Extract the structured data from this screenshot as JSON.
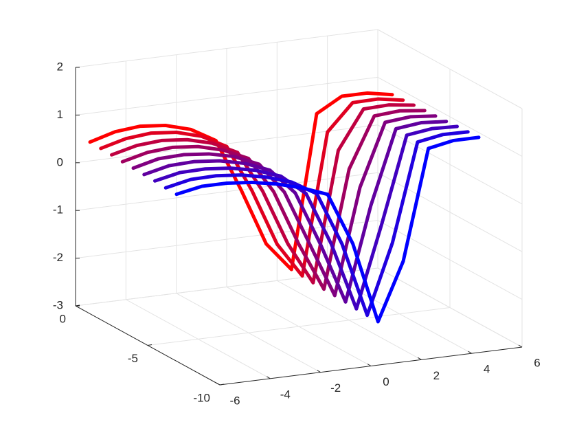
{
  "chart_data": {
    "type": "line3d",
    "x": [
      -6,
      -5,
      -4,
      -3,
      -2,
      -1,
      0,
      1,
      2,
      3,
      4,
      5,
      6
    ],
    "series": [
      {
        "y": -1,
        "color": "#ff0000",
        "values": [
          0.6,
          0.75,
          0.8,
          0.75,
          0.6,
          0.3,
          -0.8,
          -2,
          -2.6,
          0.6,
          0.9,
          0.9,
          0.8
        ]
      },
      {
        "y": -1.75,
        "color": "#df0020",
        "values": [
          0.59,
          0.73,
          0.78,
          0.73,
          0.58,
          0.3,
          -0.69,
          -1.88,
          -2.61,
          0.34,
          0.89,
          0.9,
          0.81
        ]
      },
      {
        "y": -2.5,
        "color": "#bf0040",
        "values": [
          0.58,
          0.71,
          0.75,
          0.7,
          0.56,
          0.3,
          -0.58,
          -1.75,
          -2.63,
          0.08,
          0.88,
          0.9,
          0.83
        ]
      },
      {
        "y": -3.25,
        "color": "#9f0060",
        "values": [
          0.56,
          0.69,
          0.73,
          0.68,
          0.54,
          0.3,
          -0.46,
          -1.63,
          -2.64,
          -0.19,
          0.86,
          0.9,
          0.84
        ]
      },
      {
        "y": -4,
        "color": "#800080",
        "values": [
          0.55,
          0.68,
          0.7,
          0.65,
          0.53,
          0.3,
          -0.35,
          -1.5,
          -2.65,
          -0.45,
          0.85,
          0.9,
          0.85
        ]
      },
      {
        "y": -4.75,
        "color": "#60009f",
        "values": [
          0.54,
          0.66,
          0.68,
          0.63,
          0.51,
          0.3,
          -0.24,
          -1.38,
          -2.66,
          -0.71,
          0.84,
          0.9,
          0.86
        ]
      },
      {
        "y": -5.5,
        "color": "#4000bf",
        "values": [
          0.53,
          0.64,
          0.65,
          0.6,
          0.49,
          0.3,
          -0.13,
          -1.25,
          -2.68,
          -0.98,
          0.83,
          0.9,
          0.88
        ]
      },
      {
        "y": -6.25,
        "color": "#2000df",
        "values": [
          0.51,
          0.62,
          0.63,
          0.58,
          0.47,
          0.3,
          -0.01,
          -1.13,
          -2.69,
          -1.24,
          0.81,
          0.9,
          0.89
        ]
      },
      {
        "y": -7,
        "color": "#0000ff",
        "values": [
          0.5,
          0.6,
          0.6,
          0.55,
          0.45,
          0.3,
          0.1,
          -1,
          -2.7,
          -1.5,
          0.8,
          0.9,
          0.9
        ]
      }
    ],
    "xlim": [
      -6,
      6
    ],
    "xticks": [
      -6,
      -4,
      -2,
      0,
      2,
      4,
      6
    ],
    "ylim": [
      -10,
      0
    ],
    "yticks": [
      -10,
      -5,
      0
    ],
    "zlim": [
      -3,
      2
    ],
    "zticks": [
      -3,
      -2,
      -1,
      0,
      1,
      2
    ],
    "grid": true
  }
}
